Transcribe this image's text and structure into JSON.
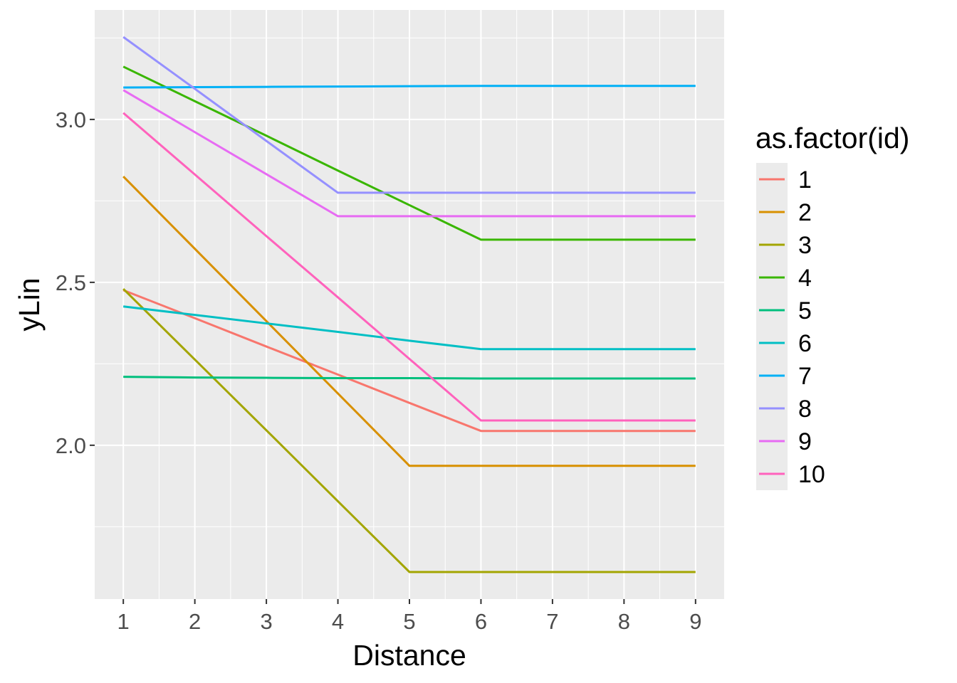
{
  "chart_data": {
    "type": "line",
    "title": "",
    "xlabel": "Distance",
    "ylabel": "yLin",
    "x": [
      1,
      2,
      3,
      4,
      5,
      6,
      7,
      8,
      9
    ],
    "xlim": [
      0.6,
      9.4
    ],
    "ylim": [
      1.528,
      3.336
    ],
    "xticks": [
      "1",
      "2",
      "3",
      "4",
      "5",
      "6",
      "7",
      "8",
      "9"
    ],
    "yticks": [
      {
        "value": 2.0,
        "label": "2.0"
      },
      {
        "value": 2.5,
        "label": "2.5"
      },
      {
        "value": 3.0,
        "label": "3.0"
      }
    ],
    "grid": true,
    "legend": {
      "title": "as.factor(id)",
      "placement": "right"
    },
    "series": [
      {
        "name": "1",
        "color": "#F8766D",
        "values": [
          2.476,
          2.39,
          2.303,
          2.217,
          2.13,
          2.044,
          2.044,
          2.044,
          2.044
        ]
      },
      {
        "name": "2",
        "color": "#D89000",
        "values": [
          2.825,
          2.603,
          2.381,
          2.159,
          1.937,
          1.937,
          1.937,
          1.937,
          1.937
        ]
      },
      {
        "name": "3",
        "color": "#A3A500",
        "values": [
          2.48,
          2.263,
          2.046,
          1.828,
          1.611,
          1.611,
          1.611,
          1.611,
          1.611
        ]
      },
      {
        "name": "4",
        "color": "#39B600",
        "values": [
          3.162,
          3.056,
          2.95,
          2.843,
          2.737,
          2.631,
          2.631,
          2.631,
          2.631
        ]
      },
      {
        "name": "5",
        "color": "#00BF7D",
        "values": [
          2.21,
          2.208,
          2.207,
          2.206,
          2.206,
          2.205,
          2.205,
          2.205,
          2.205
        ]
      },
      {
        "name": "6",
        "color": "#00BFC4",
        "values": [
          2.426,
          2.4,
          2.374,
          2.348,
          2.321,
          2.295,
          2.295,
          2.295,
          2.295
        ]
      },
      {
        "name": "7",
        "color": "#00B0F6",
        "values": [
          3.098,
          3.099,
          3.1,
          3.101,
          3.102,
          3.103,
          3.103,
          3.103,
          3.103
        ]
      },
      {
        "name": "8",
        "color": "#9590FF",
        "values": [
          3.253,
          3.094,
          2.934,
          2.775,
          2.775,
          2.775,
          2.775,
          2.775,
          2.775
        ]
      },
      {
        "name": "9",
        "color": "#E76BF3",
        "values": [
          3.09,
          2.961,
          2.832,
          2.703,
          2.703,
          2.703,
          2.703,
          2.703,
          2.703
        ]
      },
      {
        "name": "10",
        "color": "#FF62BC",
        "values": [
          3.02,
          2.831,
          2.642,
          2.454,
          2.265,
          2.076,
          2.076,
          2.076,
          2.076
        ]
      }
    ]
  }
}
